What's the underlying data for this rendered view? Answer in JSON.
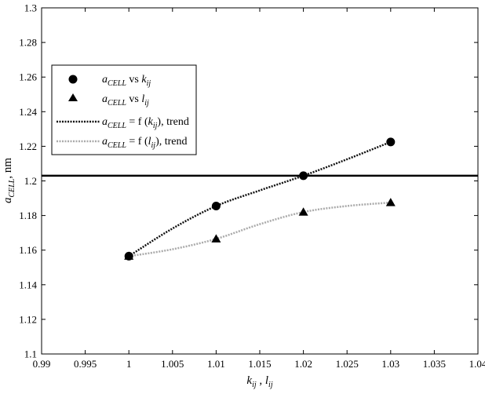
{
  "chart_data": {
    "type": "line",
    "title": "",
    "xlabel": {
      "main": "k",
      "main_sub": "ij",
      "sep": " , ",
      "second": "l",
      "second_sub": "ij"
    },
    "ylabel": {
      "main": "a",
      "sub": "CELL",
      "unit": ", nm"
    },
    "xlim": [
      0.99,
      1.04
    ],
    "ylim": [
      1.1,
      1.3
    ],
    "x_ticks": [
      0.99,
      0.995,
      1,
      1.005,
      1.01,
      1.015,
      1.02,
      1.025,
      1.03,
      1.035,
      1.04
    ],
    "x_tick_labels": [
      "0.99",
      "0.995",
      "1",
      "1.005",
      "1.01",
      "1.015",
      "1.02",
      "1.025",
      "1.03",
      "1.035",
      "1.04"
    ],
    "y_ticks": [
      1.1,
      1.12,
      1.14,
      1.16,
      1.18,
      1.2,
      1.22,
      1.24,
      1.26,
      1.28,
      1.3
    ],
    "y_tick_labels": [
      "1.1",
      "1.12",
      "1.14",
      "1.16",
      "1.18",
      "1.2",
      "1.22",
      "1.24",
      "1.26",
      "1.28",
      "1.3"
    ],
    "grid": false,
    "legend_position": "upper-left",
    "reference_line": {
      "y": 1.203,
      "color": "#000000"
    },
    "series": [
      {
        "legend": {
          "pre": "a",
          "sub": "CELL",
          "mid": " vs ",
          "var": "k",
          "var_sub": "ij",
          "post": ""
        },
        "marker": "circle",
        "color": "#000000",
        "x": [
          1.0,
          1.01,
          1.02,
          1.03
        ],
        "y": [
          1.1565,
          1.1855,
          1.203,
          1.2225
        ]
      },
      {
        "legend": {
          "pre": "a",
          "sub": "CELL",
          "mid": " vs ",
          "var": "l",
          "var_sub": "ij",
          "post": ""
        },
        "marker": "triangle",
        "color": "#000000",
        "x": [
          1.0,
          1.01,
          1.02,
          1.03
        ],
        "y": [
          1.1565,
          1.1665,
          1.182,
          1.1875
        ]
      },
      {
        "legend": {
          "pre": "a",
          "sub": "CELL",
          "mid": " = f (",
          "var": "k",
          "var_sub": "ij",
          "post": "), trend"
        },
        "line_style": "dotted",
        "color": "#111111",
        "x": [
          1.0,
          1.005,
          1.01,
          1.015,
          1.02,
          1.025,
          1.03
        ],
        "y": [
          1.1565,
          1.1725,
          1.1855,
          1.1945,
          1.203,
          1.2125,
          1.2225
        ]
      },
      {
        "legend": {
          "pre": "a",
          "sub": "CELL",
          "mid": " = f (",
          "var": "l",
          "var_sub": "ij",
          "post": "), trend"
        },
        "line_style": "dotted",
        "color": "#aaaaaa",
        "x": [
          1.0,
          1.005,
          1.01,
          1.015,
          1.02,
          1.025,
          1.03
        ],
        "y": [
          1.1565,
          1.1605,
          1.1665,
          1.175,
          1.182,
          1.1855,
          1.1875
        ]
      }
    ]
  }
}
